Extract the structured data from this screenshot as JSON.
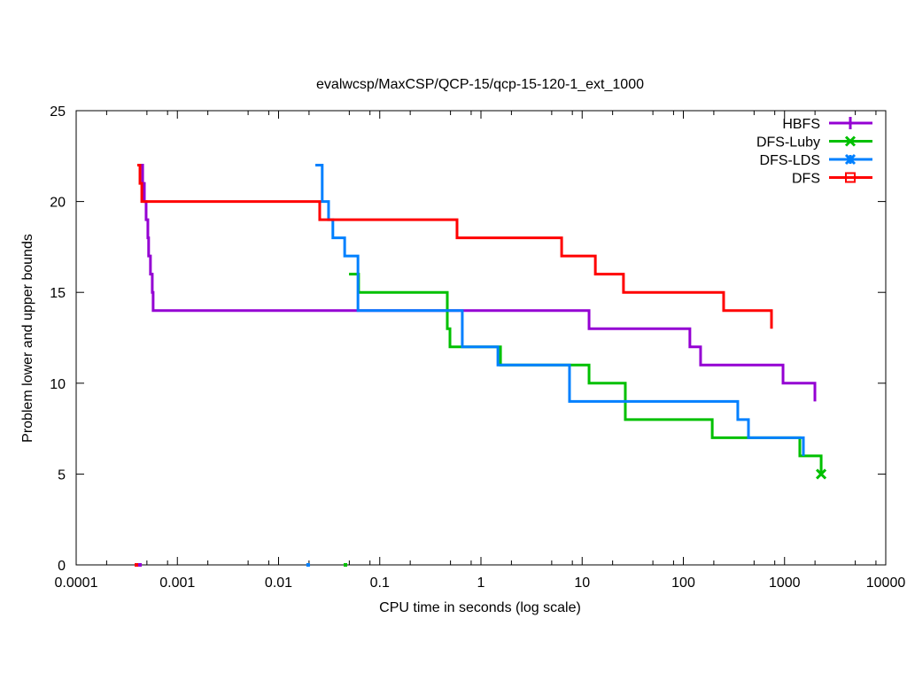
{
  "chart_data": {
    "type": "line",
    "title": "evalwcsp/MaxCSP/QCP-15/qcp-15-120-1_ext_1000",
    "xlabel": "CPU time in seconds (log scale)",
    "ylabel": "Problem lower and upper bounds",
    "xscale": "log",
    "xlim": [
      0.0001,
      10000
    ],
    "ylim": [
      0,
      25
    ],
    "xticks": [
      0.0001,
      0.001,
      0.01,
      0.1,
      1,
      10,
      100,
      1000,
      10000
    ],
    "xtick_labels": [
      "0.0001",
      "0.001",
      "0.01",
      "0.1",
      "1",
      "10",
      "100",
      "1000",
      "10000"
    ],
    "yticks": [
      0,
      5,
      10,
      15,
      20,
      25
    ],
    "ytick_labels": [
      "0",
      "5",
      "10",
      "15",
      "20",
      "25"
    ],
    "grid": false,
    "legend_position": "top-right",
    "series": [
      {
        "name": "HBFS",
        "color": "#9400d3",
        "marker": "plus",
        "lower_bound": [
          [
            0.000427,
            0
          ]
        ],
        "steps": [
          [
            0.000427,
            22
          ],
          [
            0.000454,
            21
          ],
          [
            0.000472,
            20
          ],
          [
            0.000491,
            19
          ],
          [
            0.000511,
            18
          ],
          [
            0.00052,
            17
          ],
          [
            0.000542,
            16
          ],
          [
            0.000565,
            15
          ],
          [
            0.000576,
            14
          ],
          [
            11.7,
            13
          ],
          [
            116,
            12
          ],
          [
            148,
            11
          ],
          [
            966,
            10
          ],
          [
            1995,
            9
          ]
        ]
      },
      {
        "name": "DFS-Luby",
        "color": "#00c000",
        "marker": "x",
        "lower_bound": [
          [
            0.0458,
            0
          ]
        ],
        "steps": [
          [
            0.0497,
            16
          ],
          [
            0.0618,
            15
          ],
          [
            0.465,
            13
          ],
          [
            0.494,
            12
          ],
          [
            1.56,
            11
          ],
          [
            11.7,
            10
          ],
          [
            26.7,
            8
          ],
          [
            193,
            7
          ],
          [
            1415,
            6
          ],
          [
            2300,
            5
          ]
        ],
        "end_marker": true
      },
      {
        "name": "DFS-LDS",
        "color": "#0080ff",
        "marker": "star",
        "lower_bound": [
          [
            0.0196,
            0
          ]
        ],
        "steps": [
          [
            0.0231,
            22
          ],
          [
            0.027,
            20
          ],
          [
            0.0312,
            19
          ],
          [
            0.0344,
            18
          ],
          [
            0.045,
            17
          ],
          [
            0.0609,
            14
          ],
          [
            0.654,
            12
          ],
          [
            1.47,
            11
          ],
          [
            7.5,
            9
          ],
          [
            345,
            8
          ],
          [
            440,
            7
          ],
          [
            1535,
            6
          ]
        ]
      },
      {
        "name": "DFS",
        "color": "#ff0000",
        "marker": "square",
        "lower_bound": [
          [
            0.000394,
            0
          ]
        ],
        "steps": [
          [
            0.000402,
            22
          ],
          [
            0.000427,
            21
          ],
          [
            0.000445,
            20
          ],
          [
            0.0255,
            19
          ],
          [
            0.58,
            18
          ],
          [
            6.27,
            17
          ],
          [
            13.5,
            16
          ],
          [
            25.6,
            15
          ],
          [
            250,
            14
          ],
          [
            743,
            13
          ]
        ]
      }
    ]
  }
}
